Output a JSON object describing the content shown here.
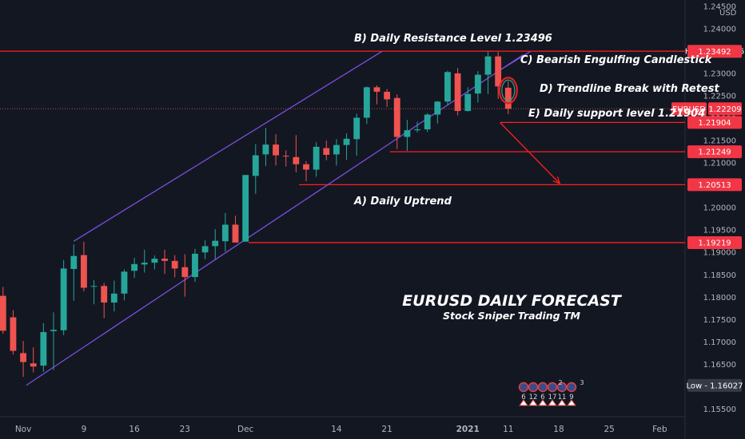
{
  "chart_data": {
    "type": "candlestick",
    "symbol": "EURUSD",
    "currency": "USD",
    "title": "EURUSD DAILY FORECAST",
    "subtitle": "Stock Sniper Trading TM",
    "ylim": [
      1.1533,
      1.2464
    ],
    "y_ticks": [
      1.245,
      1.24,
      1.235,
      1.23,
      1.225,
      1.22,
      1.215,
      1.21,
      1.205,
      1.2,
      1.195,
      1.19,
      1.185,
      1.18,
      1.175,
      1.17,
      1.165,
      1.16,
      1.155
    ],
    "y_tick_labels": [
      "1.24500",
      "1.24000",
      "1.23500",
      "1.23000",
      "1.22500",
      "1.22000",
      "1.21500",
      "1.21000",
      "1.20500",
      "1.20000",
      "1.19500",
      "1.19000",
      "1.18500",
      "1.18000",
      "1.17500",
      "1.17000",
      "1.16500",
      "1.16000",
      "1.15500"
    ],
    "x_ticks": [
      {
        "label": "Nov",
        "bar": 0
      },
      {
        "label": "9",
        "bar": 6
      },
      {
        "label": "16",
        "bar": 11
      },
      {
        "label": "23",
        "bar": 16
      },
      {
        "label": "Dec",
        "bar": 22
      },
      {
        "label": "14",
        "bar": 31
      },
      {
        "label": "21",
        "bar": 36
      },
      {
        "label": "2021",
        "bar": 44
      },
      {
        "label": "11",
        "bar": 48
      },
      {
        "label": "18",
        "bar": 53
      },
      {
        "label": "25",
        "bar": 58
      },
      {
        "label": "Feb",
        "bar": 63
      }
    ],
    "xlim": [
      -2.3,
      65.5
    ],
    "candles": [
      {
        "bar": -2,
        "o": 1.1803,
        "h": 1.1823,
        "l": 1.1718,
        "c": 1.1725
      },
      {
        "bar": -1,
        "o": 1.1755,
        "h": 1.1771,
        "l": 1.1672,
        "c": 1.168
      },
      {
        "bar": 0,
        "o": 1.1675,
        "h": 1.1702,
        "l": 1.1622,
        "c": 1.1655
      },
      {
        "bar": 1,
        "o": 1.1652,
        "h": 1.1688,
        "l": 1.1632,
        "c": 1.1645
      },
      {
        "bar": 2,
        "o": 1.1647,
        "h": 1.1742,
        "l": 1.1633,
        "c": 1.1722
      },
      {
        "bar": 3,
        "o": 1.1724,
        "h": 1.1766,
        "l": 1.1637,
        "c": 1.1727
      },
      {
        "bar": 4,
        "o": 1.1726,
        "h": 1.1883,
        "l": 1.1715,
        "c": 1.1864
      },
      {
        "bar": 5,
        "o": 1.1863,
        "h": 1.1918,
        "l": 1.1792,
        "c": 1.1892
      },
      {
        "bar": 6,
        "o": 1.1894,
        "h": 1.1924,
        "l": 1.1813,
        "c": 1.1821
      },
      {
        "bar": 7,
        "o": 1.1824,
        "h": 1.1838,
        "l": 1.1784,
        "c": 1.1825
      },
      {
        "bar": 8,
        "o": 1.1825,
        "h": 1.1832,
        "l": 1.1753,
        "c": 1.1788
      },
      {
        "bar": 9,
        "o": 1.1788,
        "h": 1.1837,
        "l": 1.1768,
        "c": 1.1808
      },
      {
        "bar": 10,
        "o": 1.1808,
        "h": 1.1862,
        "l": 1.1793,
        "c": 1.1857
      },
      {
        "bar": 11,
        "o": 1.1859,
        "h": 1.1888,
        "l": 1.1843,
        "c": 1.1874
      },
      {
        "bar": 12,
        "o": 1.1873,
        "h": 1.1906,
        "l": 1.1855,
        "c": 1.1877
      },
      {
        "bar": 13,
        "o": 1.1877,
        "h": 1.1893,
        "l": 1.1862,
        "c": 1.1886
      },
      {
        "bar": 14,
        "o": 1.1886,
        "h": 1.1906,
        "l": 1.1852,
        "c": 1.1881
      },
      {
        "bar": 15,
        "o": 1.1881,
        "h": 1.1894,
        "l": 1.1844,
        "c": 1.1864
      },
      {
        "bar": 16,
        "o": 1.1867,
        "h": 1.1896,
        "l": 1.1801,
        "c": 1.1845
      },
      {
        "bar": 17,
        "o": 1.1845,
        "h": 1.1908,
        "l": 1.1834,
        "c": 1.1897
      },
      {
        "bar": 18,
        "o": 1.19,
        "h": 1.1927,
        "l": 1.1885,
        "c": 1.1914
      },
      {
        "bar": 19,
        "o": 1.1914,
        "h": 1.1952,
        "l": 1.1885,
        "c": 1.1926
      },
      {
        "bar": 20,
        "o": 1.1925,
        "h": 1.1988,
        "l": 1.1902,
        "c": 1.1962
      },
      {
        "bar": 21,
        "o": 1.1962,
        "h": 1.1982,
        "l": 1.1923,
        "c": 1.1922
      },
      {
        "bar": 22,
        "o": 1.1924,
        "h": 1.2073,
        "l": 1.1924,
        "c": 1.2073
      },
      {
        "bar": 23,
        "o": 1.2071,
        "h": 1.2142,
        "l": 1.2031,
        "c": 1.2117
      },
      {
        "bar": 24,
        "o": 1.2119,
        "h": 1.2178,
        "l": 1.2093,
        "c": 1.2141
      },
      {
        "bar": 25,
        "o": 1.2141,
        "h": 1.2164,
        "l": 1.2094,
        "c": 1.2117
      },
      {
        "bar": 26,
        "o": 1.2116,
        "h": 1.2128,
        "l": 1.2092,
        "c": 1.2115
      },
      {
        "bar": 27,
        "o": 1.2113,
        "h": 1.2162,
        "l": 1.2079,
        "c": 1.2097
      },
      {
        "bar": 28,
        "o": 1.2097,
        "h": 1.2104,
        "l": 1.2059,
        "c": 1.2085
      },
      {
        "bar": 29,
        "o": 1.2085,
        "h": 1.2146,
        "l": 1.2069,
        "c": 1.2136
      },
      {
        "bar": 30,
        "o": 1.2133,
        "h": 1.215,
        "l": 1.2106,
        "c": 1.2118
      },
      {
        "bar": 31,
        "o": 1.2119,
        "h": 1.2153,
        "l": 1.2094,
        "c": 1.214
      },
      {
        "bar": 32,
        "o": 1.214,
        "h": 1.2166,
        "l": 1.2107,
        "c": 1.2154
      },
      {
        "bar": 33,
        "o": 1.2153,
        "h": 1.221,
        "l": 1.2116,
        "c": 1.2201
      },
      {
        "bar": 34,
        "o": 1.2201,
        "h": 1.2271,
        "l": 1.2187,
        "c": 1.2269
      },
      {
        "bar": 35,
        "o": 1.2269,
        "h": 1.2273,
        "l": 1.2231,
        "c": 1.2259
      },
      {
        "bar": 36,
        "o": 1.2259,
        "h": 1.2265,
        "l": 1.2225,
        "c": 1.2242
      },
      {
        "bar": 37,
        "o": 1.2245,
        "h": 1.2253,
        "l": 1.2131,
        "c": 1.2158
      },
      {
        "bar": 38,
        "o": 1.2158,
        "h": 1.2196,
        "l": 1.2127,
        "c": 1.2173
      },
      {
        "bar": 39,
        "o": 1.2173,
        "h": 1.2192,
        "l": 1.2168,
        "c": 1.2175
      },
      {
        "bar": 40,
        "o": 1.2175,
        "h": 1.2211,
        "l": 1.2169,
        "c": 1.2208
      },
      {
        "bar": 41,
        "o": 1.2208,
        "h": 1.2238,
        "l": 1.2188,
        "c": 1.2237
      },
      {
        "bar": 42,
        "o": 1.2237,
        "h": 1.2306,
        "l": 1.2228,
        "c": 1.2303
      },
      {
        "bar": 43,
        "o": 1.23,
        "h": 1.2312,
        "l": 1.2206,
        "c": 1.2216
      },
      {
        "bar": 44,
        "o": 1.2216,
        "h": 1.2269,
        "l": 1.2215,
        "c": 1.2254
      },
      {
        "bar": 45,
        "o": 1.2255,
        "h": 1.2305,
        "l": 1.2235,
        "c": 1.2297
      },
      {
        "bar": 46,
        "o": 1.2297,
        "h": 1.2349,
        "l": 1.2254,
        "c": 1.2338
      },
      {
        "bar": 47,
        "o": 1.2338,
        "h": 1.2348,
        "l": 1.2243,
        "c": 1.2271
      },
      {
        "bar": 48,
        "o": 1.2268,
        "h": 1.2283,
        "l": 1.2209,
        "c": 1.2221
      }
    ],
    "colors": {
      "up": "#26a69a",
      "down": "#ef5350",
      "channel": "#7b4fdc",
      "level": "#ff1f1f",
      "label_bg": "#f23645",
      "grey_label": "#363a45"
    },
    "horizontal_levels": [
      {
        "price": 1.23496,
        "from_bar": -2.3,
        "label": "High - 1.23496"
      },
      {
        "price": 1.21904,
        "from_bar": 47.2,
        "label": "1.21904"
      },
      {
        "price": 1.21249,
        "from_bar": 36.3,
        "label": "1.21249"
      },
      {
        "price": 1.20513,
        "from_bar": 27.3,
        "label": "1.20513"
      },
      {
        "price": 1.19219,
        "from_bar": 22.3,
        "label": "1.19219"
      }
    ],
    "current_price": {
      "price": 1.22209,
      "label": "1.22209",
      "symbol_label": "EURUSD"
    },
    "low": {
      "price": 1.16027,
      "label": "Low - 1.16027"
    },
    "price_labels_extra": [
      {
        "price": 1.23492,
        "label": "1.23492"
      }
    ],
    "trend_channel": {
      "lower": {
        "bar1": 0.3,
        "p1": 1.1603,
        "bar2": 49.5,
        "p2": 1.2342
      },
      "upper": {
        "bar1": 5,
        "p1": 1.1925,
        "bar2": 35.5,
        "p2": 1.2349
      },
      "upper_ext": {
        "bar1": 47,
        "p1": 1.2305,
        "bar2": 50.2,
        "p2": 1.2349
      }
    },
    "forecast_arrow": {
      "bar1": 47.2,
      "p1": 1.219,
      "bar2": 53.1,
      "p2": 1.2054
    },
    "annotations": {
      "resistance": "B) Daily Resistance Level 1.23496",
      "engulfing": "C) Bearish Engulfing Candlestick",
      "trendline_break": "D) Trendline Break with Retest",
      "support": "E) Daily support level 1.21904",
      "uptrend": "A) Daily Uptrend"
    },
    "event_markers": {
      "counts": [
        "6",
        "12",
        "6",
        "17",
        "11",
        "9"
      ],
      "small_counts": [
        "2",
        "3"
      ]
    }
  }
}
